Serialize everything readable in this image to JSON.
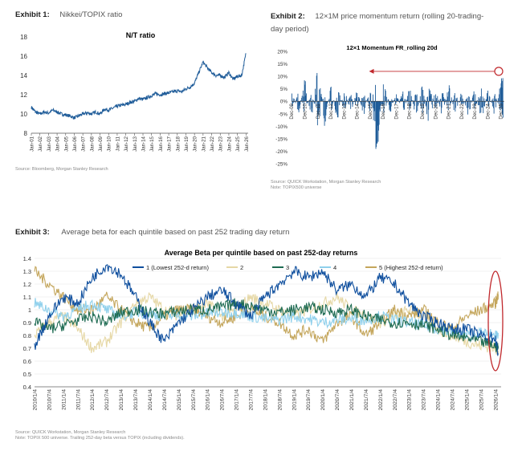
{
  "exhibits": [
    {
      "label": "Exhibit 1:",
      "title": "Nikkei/TOPIX ratio"
    },
    {
      "label": "Exhibit 2:",
      "title_line1": "12×1M price momentum return (rolling 20-trading-",
      "title_line2": "day period)"
    },
    {
      "label": "Exhibit 3:",
      "title": "Average beta for each quintile based on past 252 trading day return"
    }
  ],
  "sources": {
    "ex1": "Source: Bloomberg, Morgan Stanley Research",
    "ex2_line1": "Source: QUICK Workstation, Morgan Stanley Research",
    "ex2_line2": "Note: TOPIX500 universe",
    "ex3_line1": "Source: QUICK Workstation, Morgan Stanley Research",
    "ex3_line2": "Note: TOPIX 500 universe. Trailing 252-day beta versus TOPIX (including dividends)."
  },
  "colors": {
    "nt_line": "#1f5c99",
    "momentum_bar": "#1f5c99",
    "highlight": "#c0282c",
    "q1": "#0f4f9e",
    "q2": "#e6d8a6",
    "q3": "#1e6b52",
    "q4": "#8fd0ec",
    "q5": "#c4a65c"
  },
  "chart_data": [
    {
      "type": "line",
      "title": "N/T ratio",
      "xlabel": "",
      "ylabel": "",
      "ylim": [
        8,
        18
      ],
      "yticks": [
        8,
        10,
        12,
        14,
        16,
        18
      ],
      "x_ticks": [
        "Jan-01",
        "Jan-02",
        "Jan-03",
        "Jan-04",
        "Jan-05",
        "Jan-06",
        "Jan-07",
        "Jan-08",
        "Jan-09",
        "Jan-10",
        "Jan-11",
        "Jan-12",
        "Jan-13",
        "Jan-14",
        "Jan-15",
        "Jan-16",
        "Jan-17",
        "Jan-18",
        "Jan-19",
        "Jan-20",
        "Jan-21",
        "Jan-22",
        "Jan-23",
        "Jan-24",
        "Jan-25",
        "Jan-26"
      ],
      "grid": false,
      "series": [
        {
          "x": [
            "2001-01",
            "2001-07",
            "2002-01",
            "2002-07",
            "2003-01",
            "2003-07",
            "2004-01",
            "2004-07",
            "2005-01",
            "2005-07",
            "2006-01",
            "2006-07",
            "2007-01",
            "2007-07",
            "2008-01",
            "2008-07",
            "2009-01",
            "2009-07",
            "2010-01",
            "2010-07",
            "2011-01",
            "2011-07",
            "2012-01",
            "2012-07",
            "2013-01",
            "2013-07",
            "2014-01",
            "2014-07",
            "2015-01",
            "2015-07",
            "2016-01",
            "2016-07",
            "2017-01",
            "2017-07",
            "2018-01",
            "2018-07",
            "2019-01",
            "2019-07",
            "2020-01",
            "2020-07",
            "2021-01",
            "2021-07",
            "2022-01",
            "2022-07",
            "2023-01",
            "2023-07",
            "2024-01",
            "2024-07",
            "2025-01",
            "2025-07",
            "2026-01"
          ],
          "values": [
            10.7,
            10.2,
            10.0,
            10.2,
            10.1,
            10.4,
            10.2,
            10.0,
            9.9,
            9.8,
            9.6,
            9.8,
            10.0,
            10.1,
            10.0,
            10.2,
            10.0,
            10.5,
            10.4,
            10.6,
            10.8,
            10.9,
            11.0,
            11.2,
            11.3,
            11.6,
            11.5,
            11.7,
            11.9,
            12.1,
            12.0,
            12.1,
            12.2,
            12.3,
            12.4,
            12.3,
            12.6,
            12.8,
            13.2,
            14.3,
            15.4,
            14.8,
            14.3,
            14.0,
            14.0,
            13.8,
            14.3,
            13.6,
            13.9,
            14.0,
            16.3
          ]
        }
      ]
    },
    {
      "type": "bar",
      "title": "12×1 Momentum FR_rolling 20d",
      "xlabel": "",
      "ylabel": "",
      "ylim": [
        -25,
        20
      ],
      "yticks": [
        "20%",
        "15%",
        "10%",
        "5%",
        "0%",
        "-5%",
        "-10%",
        "-15%",
        "-20%",
        "-25%"
      ],
      "x_ticks": [
        "Dec-09",
        "Dec-10",
        "Dec-11",
        "Dec-12",
        "Dec-13",
        "Dec-14",
        "Dec-15",
        "Dec-16",
        "Dec-17",
        "Dec-18",
        "Dec-19",
        "Dec-20",
        "Dec-21",
        "Dec-22",
        "Dec-23",
        "Dec-24",
        "Dec-25"
      ],
      "annotation": {
        "type": "arrow_to_latest",
        "level": 12
      },
      "series": [
        {
          "x": [
            "2009-12",
            "2010-06",
            "2010-12",
            "2011-06",
            "2011-12",
            "2012-06",
            "2012-12",
            "2013-06",
            "2013-12",
            "2014-06",
            "2014-12",
            "2015-06",
            "2015-12",
            "2016-06",
            "2016-12",
            "2017-06",
            "2017-12",
            "2018-06",
            "2018-12",
            "2019-06",
            "2019-12",
            "2020-06",
            "2020-12",
            "2021-06",
            "2021-12",
            "2022-06",
            "2022-12",
            "2023-06",
            "2023-12",
            "2024-06",
            "2024-12",
            "2025-06",
            "2025-12",
            "2026-02"
          ],
          "values": [
            6,
            -6,
            9,
            -8,
            17,
            -10,
            7,
            -9,
            6,
            -5,
            5,
            -6,
            7,
            -22,
            9,
            -5,
            4,
            -6,
            6,
            -7,
            8,
            -12,
            6,
            -8,
            7,
            -6,
            5,
            -7,
            6,
            -9,
            5,
            -6,
            8,
            12
          ]
        }
      ]
    },
    {
      "type": "line",
      "title": "Average Beta per quintile based on past 252-day returns",
      "xlabel": "",
      "ylabel": "",
      "ylim": [
        0.4,
        1.4
      ],
      "yticks": [
        0.4,
        0.5,
        0.6,
        0.7,
        0.8,
        0.9,
        1,
        1.1,
        1.2,
        1.3,
        1.4
      ],
      "x_ticks": [
        "2010/1/4",
        "2010/7/4",
        "2011/1/4",
        "2011/7/4",
        "2012/1/4",
        "2012/7/4",
        "2013/1/4",
        "2013/7/4",
        "2014/1/4",
        "2014/7/4",
        "2015/1/4",
        "2015/7/4",
        "2016/1/4",
        "2016/7/4",
        "2017/1/4",
        "2017/7/4",
        "2018/1/4",
        "2018/7/4",
        "2019/1/4",
        "2019/7/4",
        "2020/1/4",
        "2020/7/4",
        "2021/1/4",
        "2021/7/4",
        "2022/1/4",
        "2022/7/4",
        "2023/1/4",
        "2023/7/4",
        "2024/1/4",
        "2024/7/4",
        "2025/1/4",
        "2025/7/4",
        "2026/1/4"
      ],
      "legend": "top",
      "grid": true,
      "series": [
        {
          "name": "1 (Lowest 252-d return)",
          "x": [
            2010,
            2010.5,
            2011,
            2011.5,
            2012,
            2012.5,
            2013,
            2013.5,
            2014,
            2014.5,
            2015,
            2015.5,
            2016,
            2016.5,
            2017,
            2017.5,
            2018,
            2018.5,
            2019,
            2019.5,
            2020,
            2020.5,
            2021,
            2021.5,
            2022,
            2022.5,
            2023,
            2023.5,
            2024,
            2024.5,
            2025,
            2025.5,
            2026,
            2026.1
          ],
          "values": [
            0.72,
            0.95,
            1.1,
            1.05,
            1.25,
            1.35,
            1.28,
            1.1,
            0.9,
            0.75,
            0.9,
            1.0,
            1.1,
            1.15,
            1.05,
            0.95,
            1.1,
            1.2,
            1.3,
            1.25,
            1.3,
            1.15,
            1.2,
            1.1,
            1.25,
            1.2,
            1.05,
            0.95,
            0.9,
            0.85,
            0.85,
            0.8,
            0.78,
            0.65
          ]
        },
        {
          "name": "2",
          "x": [
            2010,
            2010.5,
            2011,
            2011.5,
            2012,
            2012.5,
            2013,
            2013.5,
            2014,
            2014.5,
            2015,
            2015.5,
            2016,
            2016.5,
            2017,
            2017.5,
            2018,
            2018.5,
            2019,
            2019.5,
            2020,
            2020.5,
            2021,
            2021.5,
            2022,
            2022.5,
            2023,
            2023.5,
            2024,
            2024.5,
            2025,
            2025.5,
            2026,
            2026.1
          ],
          "values": [
            0.8,
            0.9,
            0.95,
            0.85,
            0.7,
            0.75,
            0.9,
            1.05,
            1.1,
            1.0,
            0.95,
            1.0,
            1.05,
            0.95,
            1.0,
            1.1,
            1.05,
            1.0,
            0.95,
            1.0,
            1.05,
            1.1,
            1.0,
            0.95,
            0.9,
            0.95,
            1.0,
            0.95,
            0.85,
            0.8,
            0.75,
            0.72,
            0.7,
            0.68
          ]
        },
        {
          "name": "3",
          "x": [
            2010,
            2010.5,
            2011,
            2011.5,
            2012,
            2012.5,
            2013,
            2013.5,
            2014,
            2014.5,
            2015,
            2015.5,
            2016,
            2016.5,
            2017,
            2017.5,
            2018,
            2018.5,
            2019,
            2019.5,
            2020,
            2020.5,
            2021,
            2021.5,
            2022,
            2022.5,
            2023,
            2023.5,
            2024,
            2024.5,
            2025,
            2025.5,
            2026,
            2026.1
          ],
          "values": [
            0.9,
            0.85,
            0.88,
            0.92,
            0.95,
            0.9,
            0.98,
            1.0,
            0.98,
            0.97,
            0.99,
            1.0,
            1.0,
            1.02,
            1.05,
            1.03,
            1.0,
            0.98,
            1.0,
            1.02,
            1.0,
            0.98,
            1.0,
            0.95,
            0.92,
            0.9,
            0.9,
            0.88,
            0.85,
            0.8,
            0.78,
            0.75,
            0.72,
            0.7
          ]
        },
        {
          "name": "4",
          "x": [
            2010,
            2010.5,
            2011,
            2011.5,
            2012,
            2012.5,
            2013,
            2013.5,
            2014,
            2014.5,
            2015,
            2015.5,
            2016,
            2016.5,
            2017,
            2017.5,
            2018,
            2018.5,
            2019,
            2019.5,
            2020,
            2020.5,
            2021,
            2021.5,
            2022,
            2022.5,
            2023,
            2023.5,
            2024,
            2024.5,
            2025,
            2025.5,
            2026,
            2026.1
          ],
          "values": [
            1.05,
            1.0,
            0.95,
            1.0,
            1.05,
            1.0,
            0.95,
            0.98,
            0.97,
            0.95,
            0.96,
            0.95,
            0.97,
            0.98,
            0.98,
            0.95,
            0.93,
            0.92,
            0.95,
            0.93,
            0.9,
            0.92,
            0.93,
            0.92,
            0.95,
            0.92,
            0.9,
            0.88,
            0.85,
            0.82,
            0.8,
            0.82,
            0.8,
            0.82
          ]
        },
        {
          "name": "5 (Highest 252-d return)",
          "x": [
            2010,
            2010.5,
            2011,
            2011.5,
            2012,
            2012.5,
            2013,
            2013.5,
            2014,
            2014.5,
            2015,
            2015.5,
            2016,
            2016.5,
            2017,
            2017.5,
            2018,
            2018.5,
            2019,
            2019.5,
            2020,
            2020.5,
            2021,
            2021.5,
            2022,
            2022.5,
            2023,
            2023.5,
            2024,
            2024.5,
            2025,
            2025.5,
            2026,
            2026.1
          ],
          "values": [
            1.3,
            1.2,
            1.1,
            1.0,
            1.0,
            1.1,
            1.0,
            0.9,
            0.85,
            0.95,
            1.0,
            1.0,
            0.95,
            0.9,
            0.95,
            1.0,
            0.95,
            0.9,
            0.8,
            0.85,
            0.75,
            0.9,
            0.95,
            0.8,
            0.9,
            1.0,
            0.95,
            1.0,
            0.9,
            0.85,
            0.95,
            1.0,
            1.05,
            1.12
          ]
        }
      ]
    }
  ]
}
